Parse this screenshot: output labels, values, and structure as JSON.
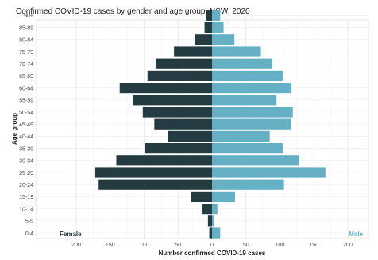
{
  "chart_data": {
    "type": "bar",
    "orientation": "horizontal",
    "layout": "population-pyramid",
    "title": "Confirmed COVID-19 cases by gender and age group, NSW, 2020",
    "xlabel": "Number confirmed COVID-19 cases",
    "ylabel": "Age group",
    "categories": [
      "0-4",
      "5-9",
      "10-14",
      "15-19",
      "20-24",
      "25-29",
      "30-34",
      "35-39",
      "40-44",
      "45-49",
      "50-54",
      "55-59",
      "60-64",
      "65-69",
      "70-74",
      "75-79",
      "80-84",
      "85-89",
      "90+"
    ],
    "series": [
      {
        "name": "Female",
        "color": "#243b42",
        "side": "left",
        "values": [
          4,
          6,
          14,
          31,
          167,
          172,
          141,
          99,
          65,
          85,
          102,
          117,
          136,
          95,
          83,
          56,
          25,
          11,
          9
        ]
      },
      {
        "name": "Male",
        "color": "#66b0c5",
        "side": "right",
        "values": [
          12,
          3,
          8,
          34,
          106,
          167,
          128,
          104,
          85,
          116,
          119,
          95,
          117,
          104,
          89,
          72,
          33,
          17,
          12
        ]
      }
    ],
    "xticks": [
      200,
      150,
      100,
      50,
      0,
      50,
      100,
      150,
      200
    ],
    "xlim": [
      -200,
      200
    ],
    "grid": true,
    "legend_placement": "bottom-inside"
  }
}
